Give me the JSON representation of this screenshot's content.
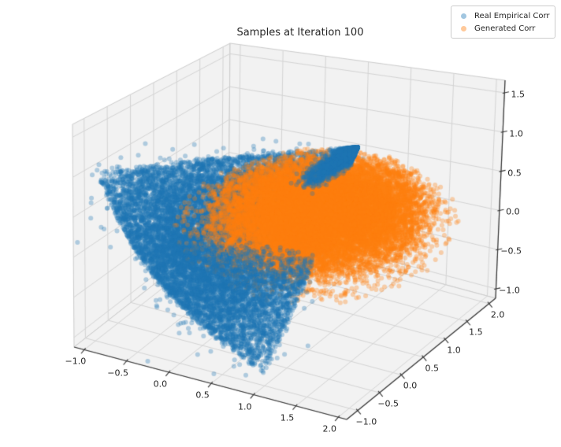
{
  "window": {
    "background": "#ffffff"
  },
  "chart_data": {
    "type": "scatter",
    "projection": "3d",
    "title": "Samples at Iteration 100",
    "legend": {
      "position": "upper right"
    },
    "axes": {
      "x": {
        "range": [
          -1.12,
          2.1
        ],
        "tick_values": [
          -1.0,
          -0.5,
          0.0,
          0.5,
          1.0,
          1.5,
          2.0
        ],
        "tick_labels": [
          "−1.0",
          "−0.5",
          "0.0",
          "0.5",
          "1.0",
          "1.5",
          "2.0"
        ]
      },
      "y": {
        "range": [
          -1.25,
          2.15
        ],
        "tick_values": [
          -1.0,
          -0.5,
          0.0,
          0.5,
          1.0,
          1.5,
          2.0
        ],
        "tick_labels": [
          "−1.0",
          "−0.5",
          "0.0",
          "0.5",
          "1.0",
          "1.5",
          "2.0"
        ]
      },
      "z": {
        "range": [
          -1.12,
          1.66
        ],
        "tick_values": [
          1.5,
          1.0,
          0.5,
          0.0,
          -0.5,
          -1.0
        ],
        "tick_labels": [
          "1.5",
          "1.0",
          "0.5",
          "0.0",
          "−0.5",
          "−1.0"
        ]
      },
      "grid": true
    },
    "series": [
      {
        "name": "Real Empirical Corr",
        "color": "#1f77b4",
        "alpha": 0.32,
        "marker_radius_px": 3,
        "distribution": {
          "kind": "elliptope",
          "n_uniform": 9000,
          "n_boundary": 3200,
          "n_noise": 1700,
          "noise_sigma": 0.14,
          "vertex_cluster": {
            "vertex": [
              1,
              1,
              1
            ],
            "n": 2600,
            "depth": 0.42,
            "sigma": 0.055
          }
        }
      },
      {
        "name": "Generated Corr",
        "color": "#ff7f0e",
        "alpha": 0.32,
        "marker_radius_px": 3,
        "distribution": {
          "kind": "gaussian-mixture",
          "components": [
            {
              "n": 15000,
              "mean": [
                0.72,
                0.78,
                0.22
              ],
              "sigma": [
                0.5,
                0.55,
                0.25
              ],
              "clip_sigma": 2.4
            },
            {
              "n": 5200,
              "mean": [
                0.72,
                0.68,
                0.08
              ],
              "sigma": [
                0.66,
                0.75,
                0.3
              ],
              "clip_sigma": 2.2
            }
          ],
          "z_clamp": [
            -0.72,
            0.85
          ],
          "xy_clamp": [
            -1.05,
            2.1
          ]
        }
      }
    ],
    "style": {
      "background": "#ffffff",
      "pane_color": "#f2f2f2",
      "grid_color": "#d4d4d4",
      "pane_edge_color": "#cccccc",
      "spine_color": "#333333",
      "tick_color": "#333333",
      "text_color": "#262626"
    },
    "seed": 20231007
  }
}
